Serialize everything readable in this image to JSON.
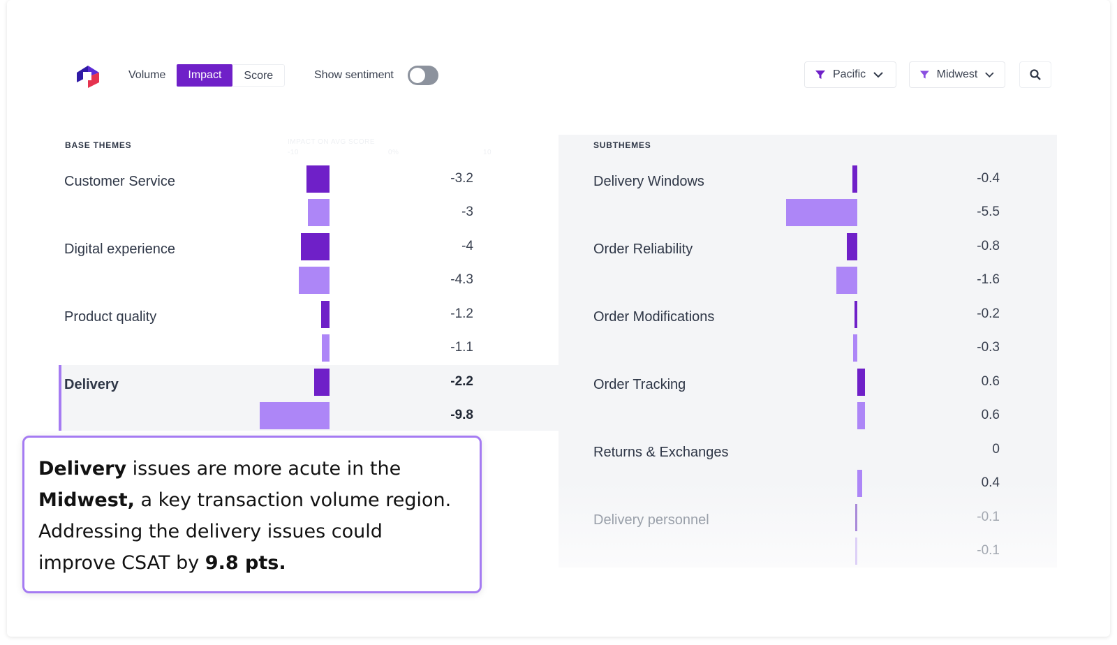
{
  "toolbar": {
    "modes": [
      {
        "label": "Volume",
        "active": false
      },
      {
        "label": "Impact",
        "active": true
      },
      {
        "label": "Score",
        "active": false
      }
    ],
    "show_sentiment_label": "Show sentiment",
    "show_sentiment_on": false,
    "filters": [
      {
        "label": "Pacific"
      },
      {
        "label": "Midwest"
      }
    ]
  },
  "base_themes": {
    "header": "BASE THEMES",
    "axis_caption": "IMPACT ON AVG SCORE",
    "axis_ticks": [
      "-10",
      "0%",
      "10"
    ],
    "rows": [
      {
        "label": "Customer Service",
        "values": [
          "-3.2",
          "-3"
        ]
      },
      {
        "label": "Digital experience",
        "values": [
          "-4",
          "-4.3"
        ]
      },
      {
        "label": "Product quality",
        "values": [
          "-1.2",
          "-1.1"
        ]
      },
      {
        "label": "Delivery",
        "values": [
          "-2.2",
          "-9.8"
        ],
        "selected": true
      }
    ]
  },
  "subthemes": {
    "header": "SUBTHEMES",
    "rows": [
      {
        "label": "Delivery Windows",
        "values": [
          "-0.4",
          "-5.5"
        ]
      },
      {
        "label": "Order Reliability",
        "values": [
          "-0.8",
          "-1.6"
        ]
      },
      {
        "label": "Order Modifications",
        "values": [
          "-0.2",
          "-0.3"
        ]
      },
      {
        "label": "Order Tracking",
        "values": [
          "0.6",
          "0.6"
        ]
      },
      {
        "label": "Returns & Exchanges",
        "values": [
          "0",
          "0.4"
        ]
      },
      {
        "label": "Delivery personnel",
        "values": [
          "-0.1",
          "-0.1"
        ]
      }
    ]
  },
  "callout": {
    "t1": "Delivery",
    "t2": " issues are more acute in the ",
    "t3": "Midwest,",
    "t4": " a key transaction volume region. Addressing the delivery issues could improve CSAT by ",
    "t5": "9.8 pts."
  },
  "colors": {
    "accent": "#6f20c8",
    "accent_light": "#ad86f7",
    "highlight_border": "#a57bf2"
  }
}
